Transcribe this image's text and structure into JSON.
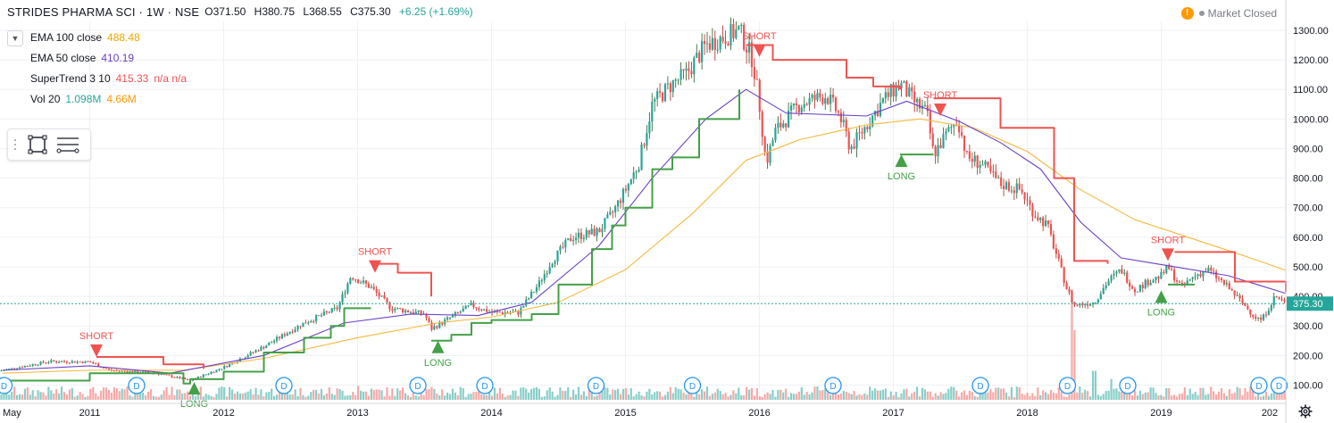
{
  "header": {
    "symbol": "STRIDES PHARMA SCI · 1W · NSE",
    "open": "O371.50",
    "high": "H380.75",
    "low": "L368.55",
    "close": "C375.30",
    "change": "+6.25 (+1.69%)"
  },
  "status": {
    "text": "Market Closed",
    "warn_icon": "!"
  },
  "legend": [
    {
      "name": "EMA 100 close",
      "value": "488.48",
      "color": "#f0a500"
    },
    {
      "name": "EMA 50 close",
      "value": "410.19",
      "color": "#6a3fc8"
    },
    {
      "name": "SuperTrend 3 10",
      "value": "415.33",
      "extra": "n/a n/a",
      "color": "#ef5350"
    },
    {
      "name": "Vol 20",
      "value": "1.098M",
      "value2": "4.66M",
      "color": "#26a69a",
      "color2": "#ff9800"
    }
  ],
  "colors": {
    "up": "#26a69a",
    "down": "#ef5350",
    "candle_up": "#1b5e20",
    "candle_down": "#b71c1c",
    "st_long": "#43a047",
    "st_short": "#ef5350",
    "ema50": "#6a3fc8",
    "ema100": "#f5b83d",
    "last_price_bg": "#26a69a",
    "grid": "#eef0f3",
    "dividend": "#2196f3"
  },
  "icons": {
    "chevron": "chevron-down-icon",
    "rect": "rectangle-tool-icon",
    "lines": "horizontal-lines-tool-icon",
    "gear": "gear-icon",
    "warn": "warning-icon"
  },
  "chart_data": {
    "type": "candlestick",
    "title": "STRIDES PHARMA SCI · 1W · NSE",
    "x_ticks": [
      "May",
      "2011",
      "2012",
      "2013",
      "2014",
      "2015",
      "2016",
      "2017",
      "2018",
      "2019",
      "202"
    ],
    "y_ticks": [
      "100.00",
      "200.00",
      "300.00",
      "400.00",
      "500.00",
      "600.00",
      "700.00",
      "800.00",
      "900.00",
      "1000.00",
      "1100.00",
      "1200.00",
      "1300.00"
    ],
    "ylim": [
      50,
      1330
    ],
    "x_range": [
      2010.33,
      2019.93
    ],
    "last_price": "375.30",
    "last_price_value": 375.3,
    "price_path": [
      [
        2010.35,
        150
      ],
      [
        2010.7,
        180
      ],
      [
        2011.0,
        178
      ],
      [
        2011.15,
        150
      ],
      [
        2011.5,
        140
      ],
      [
        2011.75,
        115
      ],
      [
        2012.0,
        160
      ],
      [
        2012.3,
        230
      ],
      [
        2012.6,
        310
      ],
      [
        2012.85,
        360
      ],
      [
        2012.95,
        470
      ],
      [
        2013.1,
        430
      ],
      [
        2013.25,
        360
      ],
      [
        2013.5,
        340
      ],
      [
        2013.55,
        290
      ],
      [
        2013.7,
        330
      ],
      [
        2013.85,
        370
      ],
      [
        2014.0,
        345
      ],
      [
        2014.2,
        345
      ],
      [
        2014.35,
        440
      ],
      [
        2014.45,
        520
      ],
      [
        2014.6,
        600
      ],
      [
        2014.8,
        620
      ],
      [
        2014.9,
        680
      ],
      [
        2015.0,
        760
      ],
      [
        2015.1,
        850
      ],
      [
        2015.2,
        1050
      ],
      [
        2015.35,
        1120
      ],
      [
        2015.45,
        1150
      ],
      [
        2015.6,
        1250
      ],
      [
        2015.75,
        1280
      ],
      [
        2015.85,
        1300
      ],
      [
        2015.95,
        1200
      ],
      [
        2016.0,
        1050
      ],
      [
        2016.05,
        850
      ],
      [
        2016.12,
        960
      ],
      [
        2016.3,
        1050
      ],
      [
        2016.5,
        1080
      ],
      [
        2016.6,
        1010
      ],
      [
        2016.68,
        900
      ],
      [
        2016.8,
        980
      ],
      [
        2016.92,
        1060
      ],
      [
        2017.05,
        1120
      ],
      [
        2017.15,
        1060
      ],
      [
        2017.25,
        1020
      ],
      [
        2017.3,
        880
      ],
      [
        2017.4,
        950
      ],
      [
        2017.48,
        1000
      ],
      [
        2017.55,
        870
      ],
      [
        2017.65,
        850
      ],
      [
        2017.8,
        780
      ],
      [
        2017.95,
        760
      ],
      [
        2018.05,
        680
      ],
      [
        2018.15,
        640
      ],
      [
        2018.3,
        420
      ],
      [
        2018.35,
        370
      ],
      [
        2018.5,
        380
      ],
      [
        2018.6,
        450
      ],
      [
        2018.7,
        490
      ],
      [
        2018.8,
        420
      ],
      [
        2018.9,
        450
      ],
      [
        2019.0,
        470
      ],
      [
        2019.05,
        500
      ],
      [
        2019.15,
        430
      ],
      [
        2019.25,
        470
      ],
      [
        2019.35,
        490
      ],
      [
        2019.5,
        430
      ],
      [
        2019.6,
        380
      ],
      [
        2019.7,
        330
      ],
      [
        2019.75,
        320
      ],
      [
        2019.85,
        400
      ],
      [
        2019.93,
        375
      ]
    ],
    "series": [
      {
        "name": "EMA 100 close",
        "points": [
          [
            2010.35,
            140
          ],
          [
            2011.0,
            150
          ],
          [
            2011.7,
            150
          ],
          [
            2012.3,
            190
          ],
          [
            2013.0,
            260
          ],
          [
            2013.6,
            310
          ],
          [
            2014.0,
            330
          ],
          [
            2014.5,
            380
          ],
          [
            2015.0,
            490
          ],
          [
            2015.5,
            680
          ],
          [
            2015.9,
            860
          ],
          [
            2016.3,
            930
          ],
          [
            2016.8,
            980
          ],
          [
            2017.2,
            1000
          ],
          [
            2017.6,
            970
          ],
          [
            2018.0,
            890
          ],
          [
            2018.4,
            760
          ],
          [
            2018.8,
            660
          ],
          [
            2019.2,
            600
          ],
          [
            2019.6,
            540
          ],
          [
            2019.93,
            488
          ]
        ]
      },
      {
        "name": "EMA 50 close",
        "points": [
          [
            2010.35,
            150
          ],
          [
            2011.0,
            165
          ],
          [
            2011.6,
            140
          ],
          [
            2012.3,
            200
          ],
          [
            2012.9,
            310
          ],
          [
            2013.4,
            340
          ],
          [
            2013.9,
            335
          ],
          [
            2014.3,
            380
          ],
          [
            2014.8,
            570
          ],
          [
            2015.2,
            800
          ],
          [
            2015.6,
            1000
          ],
          [
            2015.9,
            1100
          ],
          [
            2016.2,
            1020
          ],
          [
            2016.8,
            1010
          ],
          [
            2017.1,
            1060
          ],
          [
            2017.5,
            990
          ],
          [
            2017.8,
            920
          ],
          [
            2018.1,
            830
          ],
          [
            2018.4,
            650
          ],
          [
            2018.7,
            530
          ],
          [
            2019.1,
            500
          ],
          [
            2019.5,
            470
          ],
          [
            2019.93,
            410
          ]
        ]
      },
      {
        "name": "SuperTrend long",
        "points": [
          [
            2010.35,
            115
          ],
          [
            2011.0,
            140
          ],
          [
            2011.7,
            105
          ],
          [
            2011.75,
            120
          ],
          [
            2012.0,
            145
          ],
          [
            2012.3,
            210
          ],
          [
            2012.6,
            260
          ],
          [
            2012.8,
            300
          ],
          [
            2012.9,
            360
          ],
          [
            2013.1,
            360
          ],
          [
            2013.15,
            null
          ],
          [
            2013.55,
            250
          ],
          [
            2013.7,
            270
          ],
          [
            2013.85,
            310
          ],
          [
            2014.0,
            320
          ],
          [
            2014.3,
            340
          ],
          [
            2014.5,
            440
          ],
          [
            2014.75,
            560
          ],
          [
            2014.9,
            640
          ],
          [
            2015.0,
            700
          ],
          [
            2015.2,
            830
          ],
          [
            2015.35,
            870
          ],
          [
            2015.55,
            1000
          ],
          [
            2015.85,
            1100
          ],
          [
            2015.95,
            null
          ],
          [
            2017.05,
            880
          ],
          [
            2017.3,
            880
          ],
          [
            2017.35,
            null
          ],
          [
            2019.05,
            440
          ],
          [
            2019.25,
            440
          ]
        ]
      },
      {
        "name": "SuperTrend short",
        "points": [
          [
            2011.05,
            195
          ],
          [
            2011.55,
            170
          ],
          [
            2011.85,
            155
          ],
          [
            2011.95,
            null
          ],
          [
            2013.1,
            510
          ],
          [
            2013.3,
            480
          ],
          [
            2013.55,
            400
          ],
          [
            2013.6,
            null
          ],
          [
            2015.9,
            1250
          ],
          [
            2016.1,
            1200
          ],
          [
            2016.65,
            1140
          ],
          [
            2016.85,
            1110
          ],
          [
            2017.05,
            1100
          ],
          [
            2017.1,
            null
          ],
          [
            2017.3,
            1070
          ],
          [
            2017.65,
            1070
          ],
          [
            2017.8,
            970
          ],
          [
            2018.2,
            800
          ],
          [
            2018.35,
            520
          ],
          [
            2018.6,
            510
          ],
          [
            2019.0,
            null
          ],
          [
            2019.1,
            550
          ],
          [
            2019.35,
            550
          ],
          [
            2019.55,
            450
          ],
          [
            2019.93,
            415
          ]
        ]
      }
    ],
    "signals": [
      {
        "type": "SHORT",
        "x": 2011.05,
        "y": 195
      },
      {
        "type": "LONG",
        "x": 2011.78,
        "y": 110
      },
      {
        "type": "SHORT",
        "x": 2013.13,
        "y": 480
      },
      {
        "type": "LONG",
        "x": 2013.6,
        "y": 250
      },
      {
        "type": "SHORT",
        "x": 2016.0,
        "y": 1210
      },
      {
        "type": "LONG",
        "x": 2017.06,
        "y": 880
      },
      {
        "type": "SHORT",
        "x": 2017.35,
        "y": 1010
      },
      {
        "type": "LONG",
        "x": 2019.0,
        "y": 420
      },
      {
        "type": "SHORT",
        "x": 2019.05,
        "y": 520
      }
    ],
    "dividends": [
      2010.36,
      2011.35,
      2012.45,
      2013.45,
      2013.95,
      2014.78,
      2015.5,
      2016.55,
      2017.65,
      2018.3,
      2018.75,
      2019.73,
      2019.88
    ],
    "dividend_label": "D",
    "volume_spikes": [
      [
        2018.33,
        0.95
      ],
      [
        2018.36,
        0.6
      ],
      [
        2018.5,
        0.25
      ],
      [
        2018.62,
        0.18
      ],
      [
        2013.0,
        0.12
      ],
      [
        2015.95,
        0.1
      ],
      [
        2019.62,
        0.1
      ],
      [
        2019.05,
        0.1
      ]
    ]
  }
}
